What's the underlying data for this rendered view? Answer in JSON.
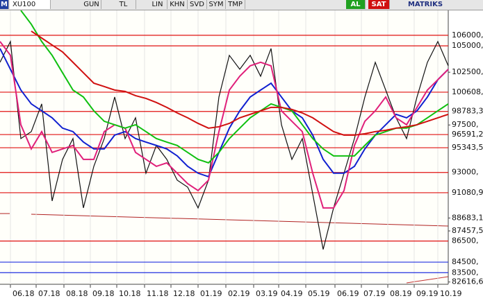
{
  "toolbar": [
    "M",
    "XU100",
    "GUN",
    "TL",
    "LIN",
    "KHN",
    "SVD",
    "SYM",
    "TMP",
    "AL",
    "SAT",
    "MATRIKS"
  ],
  "chart_data": {
    "type": "line",
    "x": [
      0,
      15,
      30,
      45,
      60,
      75,
      90,
      105,
      120,
      135,
      150,
      165,
      180,
      195,
      210,
      225,
      240,
      255,
      270,
      285,
      300,
      315,
      330,
      345,
      360,
      375,
      390,
      405,
      420,
      435,
      450,
      465,
      480,
      495,
      510,
      525,
      540,
      555,
      570,
      585,
      600,
      615,
      630,
      645
    ],
    "xlim": [
      0,
      645
    ],
    "xticks": [
      {
        "value": 15,
        "label": "06.18"
      },
      {
        "value": 52,
        "label": "07.18"
      },
      {
        "value": 92,
        "label": "08.18"
      },
      {
        "value": 130,
        "label": "09.18"
      },
      {
        "value": 168,
        "label": "10.18"
      },
      {
        "value": 208,
        "label": "11.18"
      },
      {
        "value": 246,
        "label": "12.18"
      },
      {
        "value": 285,
        "label": "01.19"
      },
      {
        "value": 325,
        "label": "02.19"
      },
      {
        "value": 365,
        "label": "03.19"
      },
      {
        "value": 401,
        "label": "04.19"
      },
      {
        "value": 440,
        "label": "05.19"
      },
      {
        "value": 482,
        "label": "06.19"
      },
      {
        "value": 520,
        "label": "07.19"
      },
      {
        "value": 558,
        "label": "08.19"
      },
      {
        "value": 596,
        "label": "09.19"
      },
      {
        "value": 630,
        "label": "10.19"
      }
    ],
    "ylim": [
      82400,
      108360
    ],
    "yticks": [
      {
        "value": 102500,
        "label": "102500,"
      },
      {
        "value": 97500,
        "label": "97500,"
      },
      {
        "value": 88683.1,
        "label": "88683,1"
      },
      {
        "value": 87457.5,
        "label": "87457,5"
      },
      {
        "value": 82616.6,
        "label": "82616,6"
      }
    ],
    "levels": [
      {
        "value": 106000,
        "label": "106000,",
        "color": "#e01010"
      },
      {
        "value": 105000,
        "label": "105000,",
        "color": "#e01010"
      },
      {
        "value": 100608,
        "label": "100608,",
        "color": "#e01010"
      },
      {
        "value": 98783.3,
        "label": "98783,3",
        "color": "#e01010"
      },
      {
        "value": 96591.2,
        "label": "96591,2",
        "color": "#e01010"
      },
      {
        "value": 95343.5,
        "label": "95343,5",
        "color": "#e01010"
      },
      {
        "value": 93000,
        "label": "93000,",
        "color": "#e01010"
      },
      {
        "value": 91080.9,
        "label": "91080,9",
        "color": "#e01010"
      },
      {
        "value": 86500,
        "label": "86500,",
        "color": "#e01010"
      },
      {
        "value": 84500,
        "label": "84500,",
        "color": "#2030e0"
      },
      {
        "value": 83500,
        "label": "83500,",
        "color": "#2030e0"
      }
    ],
    "series": [
      {
        "color": "#111111",
        "values": [
          103440,
          105410,
          96210,
          96870,
          99500,
          90300,
          94240,
          96210,
          89640,
          93580,
          96210,
          100150,
          96210,
          98180,
          92930,
          95560,
          94240,
          92270,
          91610,
          89640,
          92270,
          100150,
          104100,
          102780,
          104100,
          102120,
          104750,
          97520,
          94240,
          96210,
          90960,
          85700,
          89640,
          92930,
          96210,
          100150,
          103440,
          100810,
          98180,
          96210,
          100150,
          103440,
          105410,
          103110
        ]
      },
      {
        "color": "#1020d0",
        "values": [
          104750,
          102780,
          100810,
          99500,
          98840,
          98180,
          97200,
          96870,
          95880,
          95230,
          95230,
          96540,
          96870,
          96210,
          95880,
          95560,
          95230,
          94570,
          93580,
          92930,
          92600,
          94900,
          97200,
          98840,
          100150,
          100810,
          101460,
          100150,
          98840,
          98180,
          96540,
          94240,
          92930,
          92930,
          93580,
          95230,
          96540,
          97520,
          98510,
          98180,
          98840,
          100150,
          101790,
          102780
        ]
      },
      {
        "color": "#e0207a",
        "values": [
          105410,
          104100,
          97520,
          95230,
          96870,
          94900,
          95230,
          95560,
          94240,
          94240,
          96870,
          97520,
          97200,
          94900,
          94240,
          93580,
          93910,
          92930,
          91940,
          91280,
          92270,
          96870,
          100810,
          102120,
          103110,
          103440,
          103110,
          98840,
          97850,
          96870,
          92930,
          89640,
          89640,
          91280,
          95560,
          97850,
          98840,
          100150,
          98180,
          97520,
          99170,
          100810,
          101790,
          102780
        ]
      },
      {
        "color": "#10c010",
        "values": [
          null,
          null,
          108360,
          107050,
          105410,
          104100,
          102450,
          100810,
          100150,
          98840,
          97850,
          97520,
          97200,
          97520,
          96870,
          96210,
          95880,
          95560,
          94900,
          94240,
          93910,
          94900,
          96210,
          97200,
          98180,
          98840,
          99500,
          99170,
          98840,
          97520,
          96210,
          95230,
          94570,
          94570,
          94570,
          95560,
          96540,
          96870,
          97200,
          97200,
          97520,
          98180,
          98840,
          99500
        ]
      },
      {
        "color": "#d01010",
        "values": [
          null,
          null,
          null,
          106390,
          105740,
          105080,
          104420,
          103440,
          102450,
          101460,
          101140,
          100810,
          100680,
          100280,
          100020,
          99630,
          99170,
          98640,
          98180,
          97650,
          97200,
          97330,
          97650,
          98180,
          98510,
          98840,
          99170,
          99170,
          98970,
          98640,
          98180,
          97520,
          96870,
          96540,
          96540,
          96670,
          96870,
          97000,
          97200,
          97330,
          97520,
          97850,
          98180,
          98510
        ]
      }
    ]
  }
}
